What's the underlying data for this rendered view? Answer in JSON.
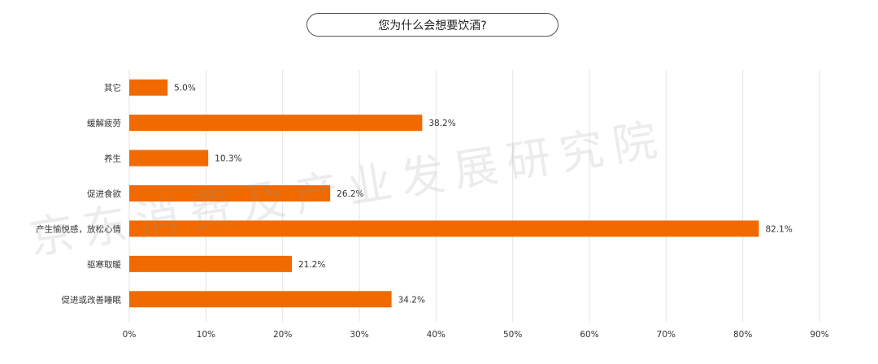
{
  "title": "您为什么会想要饮酒?",
  "watermark": "京东消费及产业发展研究院",
  "colors": {
    "bar": "#f06a00",
    "grid": "#e3e3e3",
    "text": "#333333"
  },
  "chart_data": {
    "type": "bar",
    "orientation": "horizontal",
    "categories": [
      "其它",
      "缓解疲劳",
      "养生",
      "促进食欲",
      "产生愉悦感，放松心情",
      "驱寒取暖",
      "促进或改善睡眠"
    ],
    "values": [
      5.0,
      38.2,
      10.3,
      26.2,
      82.1,
      21.2,
      34.2
    ],
    "value_labels": [
      "5.0%",
      "38.2%",
      "10.3%",
      "26.2%",
      "82.1%",
      "21.2%",
      "34.2%"
    ],
    "xlim": [
      0,
      90
    ],
    "xticks": [
      0,
      10,
      20,
      30,
      40,
      50,
      60,
      70,
      80,
      90
    ],
    "xtick_labels": [
      "0%",
      "10%",
      "20%",
      "30%",
      "40%",
      "50%",
      "60%",
      "70%",
      "80%",
      "90%"
    ],
    "grid": true,
    "title": "您为什么会想要饮酒?",
    "xlabel": "",
    "ylabel": ""
  }
}
